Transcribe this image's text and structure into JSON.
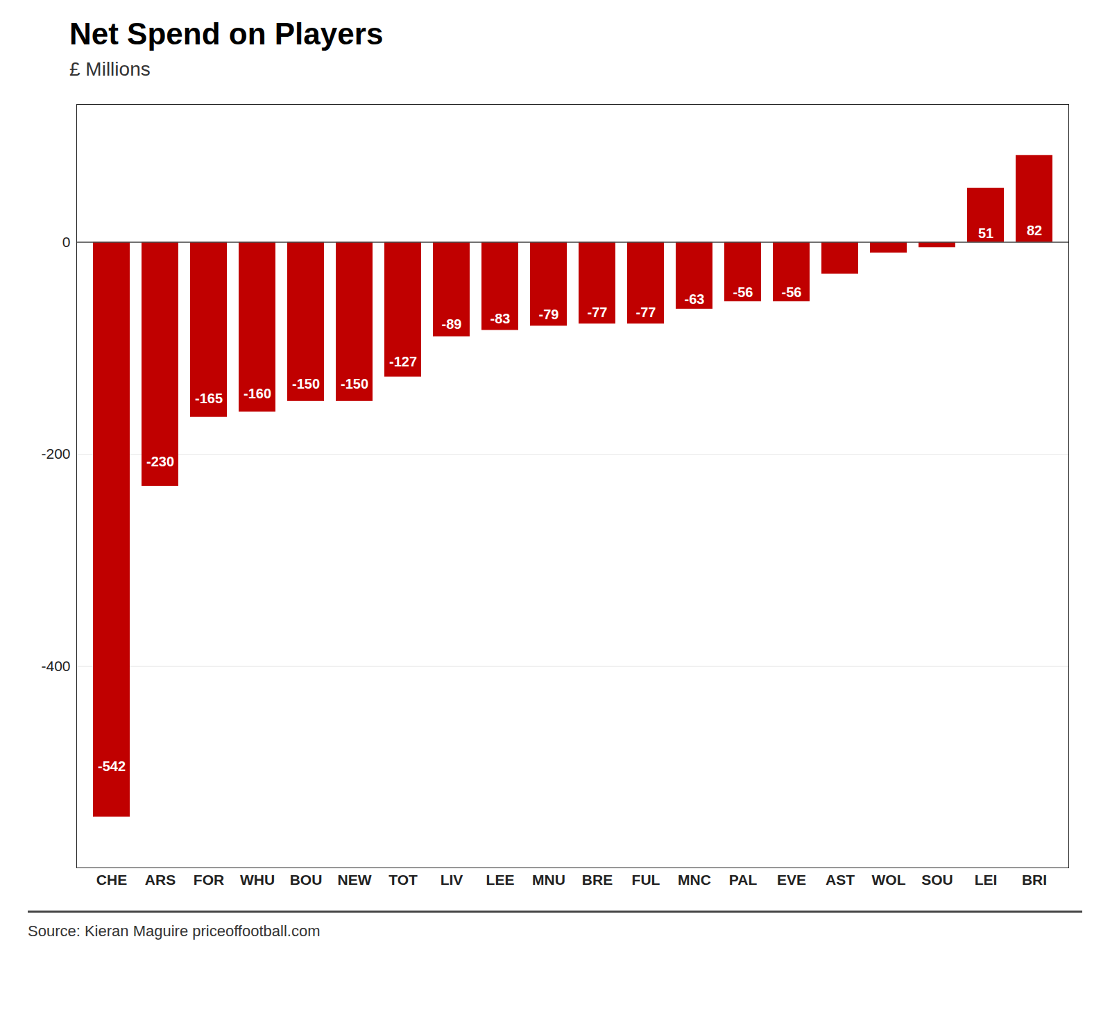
{
  "chart_data": {
    "type": "bar",
    "title": "Net Spend on Players",
    "subtitle": "£ Millions",
    "source": "Source: Kieran Maguire priceoffootball.com",
    "categories": [
      "CHE",
      "ARS",
      "FOR",
      "WHU",
      "BOU",
      "NEW",
      "TOT",
      "LIV",
      "LEE",
      "MNU",
      "BRE",
      "FUL",
      "MNC",
      "PAL",
      "EVE",
      "AST",
      "WOL",
      "SOU",
      "LEI",
      "BRI"
    ],
    "values": [
      -542,
      -230,
      -165,
      -160,
      -150,
      -150,
      -127,
      -89,
      -83,
      -79,
      -77,
      -77,
      -63,
      -56,
      -56,
      -30,
      -10,
      -5,
      51,
      82
    ],
    "value_labels": [
      "-542",
      "-230",
      "-165",
      "-160",
      "-150",
      "-150",
      "-127",
      "-89",
      "-83",
      "-79",
      "-77",
      "-77",
      "-63",
      "-56",
      "-56",
      null,
      null,
      null,
      "51",
      "82"
    ],
    "data_labels": true,
    "color": "#c00000",
    "ylim": [
      -590,
      130
    ],
    "yticks": [
      0,
      -200,
      -400
    ],
    "grid": true
  }
}
